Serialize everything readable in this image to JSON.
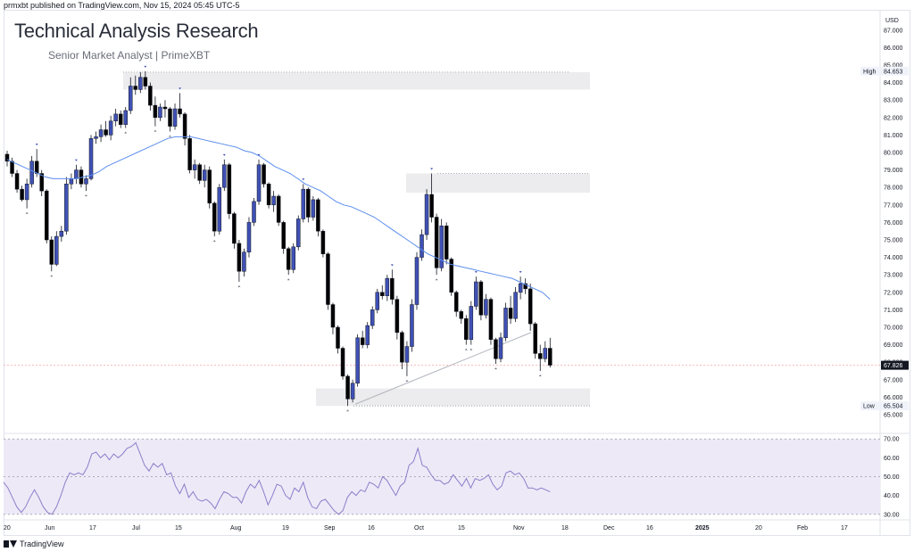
{
  "header": {
    "published_note": "prmxbt published on TradingView.com, Nov 15, 2024 05:45 UTC-5",
    "title": "Technical Analysis Research",
    "subtitle": "Senior Market Analyst | PrimeXBT",
    "currency": "USD"
  },
  "footer": {
    "brand": "TradingView"
  },
  "colors": {
    "bull": "#3f51b5",
    "bear": "#000000",
    "ma": "#5b8def",
    "rsi_line": "#8c7ec9",
    "rsi_band": "#ede9f7",
    "zone": "#ececee",
    "last_price_line": "#f7a5a8"
  },
  "price_axis": {
    "ticks": [
      "87.000",
      "86.000",
      "85.000",
      "84.000",
      "83.000",
      "82.000",
      "81.000",
      "80.000",
      "79.000",
      "78.000",
      "77.000",
      "76.000",
      "75.000",
      "74.000",
      "73.000",
      "72.000",
      "71.000",
      "70.000",
      "69.000",
      "68.000",
      "67.000",
      "66.000",
      "65.000"
    ],
    "high_label": "High",
    "high_value": "84.653",
    "low_label": "Low",
    "low_value": "65.504",
    "last_value": "67.826"
  },
  "rsi_axis": {
    "ticks": [
      "70.00",
      "60.00",
      "50.00",
      "40.00",
      "30.00"
    ]
  },
  "time_axis": [
    "20",
    "Jun",
    "17",
    "Jul",
    "15",
    "Aug",
    "19",
    "Sep",
    "16",
    "Oct",
    "15",
    "Nov",
    "18",
    "Dec",
    "16",
    "2025",
    "20",
    "Feb",
    "17"
  ],
  "chart_data": [
    {
      "type": "candlestick",
      "title": "Technical Analysis Research",
      "ylim": [
        65,
        87.5
      ],
      "series": [
        {
          "name": "price",
          "values_ohlc": [
            [
              79.9,
              80.1,
              79.2,
              79.5
            ],
            [
              79.5,
              79.7,
              78.6,
              78.8
            ],
            [
              78.8,
              79.0,
              77.7,
              77.9
            ],
            [
              77.9,
              78.1,
              77.2,
              77.3
            ],
            [
              77.3,
              78.5,
              76.8,
              78.2
            ],
            [
              78.2,
              79.8,
              78.0,
              79.5
            ],
            [
              79.5,
              80.2,
              78.6,
              78.8
            ],
            [
              78.8,
              79.0,
              77.5,
              77.8
            ],
            [
              77.8,
              77.9,
              74.8,
              75.0
            ],
            [
              75.0,
              75.2,
              73.2,
              73.6
            ],
            [
              73.6,
              75.5,
              73.5,
              75.2
            ],
            [
              75.2,
              75.8,
              74.9,
              75.5
            ],
            [
              75.5,
              78.6,
              75.3,
              78.2
            ],
            [
              78.2,
              78.8,
              77.9,
              78.5
            ],
            [
              78.5,
              79.3,
              78.2,
              79.0
            ],
            [
              79.0,
              79.2,
              78.0,
              78.2
            ],
            [
              78.2,
              78.7,
              77.8,
              78.5
            ],
            [
              78.5,
              81.0,
              78.4,
              80.8
            ],
            [
              80.8,
              81.2,
              80.5,
              80.9
            ],
            [
              80.9,
              81.6,
              80.6,
              81.3
            ],
            [
              81.3,
              81.8,
              80.9,
              81.0
            ],
            [
              81.0,
              82.1,
              80.7,
              81.8
            ],
            [
              81.8,
              82.5,
              81.5,
              82.2
            ],
            [
              82.2,
              82.4,
              81.4,
              81.6
            ],
            [
              81.6,
              82.6,
              81.4,
              82.4
            ],
            [
              82.4,
              84.3,
              82.2,
              83.8
            ],
            [
              83.8,
              84.4,
              83.3,
              83.6
            ],
            [
              83.6,
              84.6,
              83.4,
              84.3
            ],
            [
              84.3,
              84.65,
              83.6,
              83.8
            ],
            [
              83.8,
              84.0,
              82.4,
              82.7
            ],
            [
              82.7,
              83.2,
              81.5,
              82.0
            ],
            [
              82.0,
              82.8,
              81.8,
              82.6
            ],
            [
              82.6,
              83.0,
              82.0,
              82.5
            ],
            [
              82.5,
              82.6,
              81.2,
              81.5
            ],
            [
              81.5,
              82.8,
              81.3,
              82.5
            ],
            [
              82.5,
              83.4,
              82.0,
              82.2
            ],
            [
              82.2,
              82.3,
              80.4,
              80.8
            ],
            [
              80.8,
              81.0,
              78.8,
              79.0
            ],
            [
              79.0,
              79.6,
              78.5,
              79.3
            ],
            [
              79.3,
              79.4,
              78.2,
              78.4
            ],
            [
              78.4,
              79.3,
              78.0,
              79.0
            ],
            [
              79.0,
              79.2,
              76.8,
              77.1
            ],
            [
              77.1,
              77.2,
              75.2,
              75.5
            ],
            [
              75.5,
              78.2,
              75.3,
              78.0
            ],
            [
              78.0,
              79.6,
              77.8,
              79.3
            ],
            [
              79.3,
              79.4,
              76.2,
              76.5
            ],
            [
              76.5,
              76.6,
              74.5,
              74.8
            ],
            [
              74.8,
              75.0,
              72.6,
              73.2
            ],
            [
              73.2,
              74.5,
              72.9,
              74.3
            ],
            [
              74.3,
              76.3,
              74.0,
              76.0
            ],
            [
              76.0,
              77.4,
              75.8,
              77.2
            ],
            [
              77.2,
              79.6,
              77.0,
              79.3
            ],
            [
              79.3,
              79.4,
              78.0,
              78.2
            ],
            [
              78.2,
              78.3,
              76.8,
              77.0
            ],
            [
              77.0,
              77.8,
              76.6,
              77.5
            ],
            [
              77.5,
              77.6,
              75.8,
              76.0
            ],
            [
              76.0,
              76.1,
              74.2,
              74.5
            ],
            [
              74.5,
              74.6,
              73.0,
              73.3
            ],
            [
              73.3,
              74.8,
              73.1,
              74.6
            ],
            [
              74.6,
              76.4,
              74.4,
              76.2
            ],
            [
              76.2,
              78.2,
              76.0,
              77.9
            ],
            [
              77.9,
              78.0,
              76.0,
              76.3
            ],
            [
              76.3,
              77.5,
              76.1,
              77.3
            ],
            [
              77.3,
              77.4,
              75.2,
              75.5
            ],
            [
              75.5,
              75.6,
              74.0,
              74.2
            ],
            [
              74.2,
              74.3,
              71.0,
              71.3
            ],
            [
              71.3,
              71.4,
              69.6,
              70.0
            ],
            [
              70.0,
              70.1,
              68.5,
              68.8
            ],
            [
              68.8,
              68.9,
              67.0,
              67.2
            ],
            [
              67.2,
              67.3,
              65.5,
              65.9
            ],
            [
              65.9,
              67.0,
              65.7,
              66.8
            ],
            [
              66.8,
              69.6,
              66.6,
              69.4
            ],
            [
              69.4,
              69.8,
              68.8,
              69.0
            ],
            [
              69.0,
              70.3,
              68.8,
              70.1
            ],
            [
              70.1,
              71.2,
              69.9,
              71.0
            ],
            [
              71.0,
              72.2,
              70.8,
              72.0
            ],
            [
              72.0,
              72.4,
              71.6,
              71.8
            ],
            [
              71.8,
              73.0,
              71.5,
              72.8
            ],
            [
              72.8,
              73.3,
              71.3,
              71.6
            ],
            [
              71.6,
              71.8,
              69.3,
              69.7
            ],
            [
              69.7,
              69.8,
              67.6,
              68.0
            ],
            [
              68.0,
              69.2,
              67.2,
              68.9
            ],
            [
              68.9,
              71.6,
              68.6,
              71.3
            ],
            [
              71.3,
              74.3,
              71.0,
              74.0
            ],
            [
              74.0,
              75.6,
              73.8,
              75.3
            ],
            [
              75.3,
              77.9,
              75.0,
              77.6
            ],
            [
              77.6,
              78.8,
              76.0,
              76.3
            ],
            [
              76.3,
              76.5,
              73.0,
              73.4
            ],
            [
              73.4,
              76.2,
              73.2,
              75.8
            ],
            [
              75.8,
              76.0,
              73.6,
              73.9
            ],
            [
              73.9,
              74.0,
              71.8,
              72.0
            ],
            [
              72.0,
              72.1,
              70.6,
              70.9
            ],
            [
              70.9,
              71.0,
              70.2,
              70.5
            ],
            [
              70.5,
              70.7,
              69.0,
              69.3
            ],
            [
              69.3,
              71.5,
              69.0,
              71.2
            ],
            [
              71.2,
              72.9,
              71.0,
              72.6
            ],
            [
              72.6,
              72.7,
              70.4,
              70.7
            ],
            [
              70.7,
              71.9,
              70.5,
              71.6
            ],
            [
              71.6,
              71.7,
              69.0,
              69.3
            ],
            [
              69.3,
              69.4,
              67.9,
              68.2
            ],
            [
              68.2,
              69.7,
              68.0,
              69.4
            ],
            [
              69.4,
              71.4,
              69.2,
              71.1
            ],
            [
              71.1,
              71.8,
              70.2,
              70.5
            ],
            [
              70.5,
              72.3,
              70.3,
              72.0
            ],
            [
              72.0,
              72.9,
              71.6,
              72.5
            ],
            [
              72.5,
              72.8,
              71.9,
              72.2
            ],
            [
              72.2,
              72.5,
              69.8,
              70.2
            ],
            [
              70.2,
              70.3,
              68.2,
              68.5
            ],
            [
              68.5,
              69.0,
              67.5,
              68.2
            ],
            [
              68.2,
              69.2,
              68.0,
              68.8
            ],
            [
              68.8,
              69.4,
              67.7,
              67.83
            ]
          ]
        },
        {
          "name": "moving average",
          "values": [
            79.6,
            79.4,
            79.2,
            79.0,
            78.8,
            78.6,
            78.5,
            78.5,
            78.5,
            78.5,
            78.6,
            78.7,
            78.9,
            79.2,
            79.4,
            79.6,
            79.8,
            80.0,
            80.2,
            80.4,
            80.6,
            80.8,
            80.9,
            80.9,
            80.9,
            80.8,
            80.7,
            80.6,
            80.5,
            80.4,
            80.3,
            80.1,
            80.0,
            79.8,
            79.5,
            79.2,
            79.0,
            78.8,
            78.5,
            78.2,
            78.0,
            77.8,
            77.5,
            77.2,
            77.0,
            76.9,
            76.7,
            76.5,
            76.3,
            76.0,
            75.7,
            75.4,
            75.1,
            74.8,
            74.5,
            74.2,
            74.0,
            73.8,
            73.6,
            73.5,
            73.4,
            73.3,
            73.2,
            73.1,
            73.0,
            72.9,
            72.8,
            72.6,
            72.4,
            72.2,
            72.0,
            71.6
          ]
        }
      ],
      "marked_high": 84.653,
      "marked_low": 65.504,
      "last_price": 67.826
    },
    {
      "type": "line",
      "title": "",
      "ylim": [
        28,
        72
      ],
      "series": [
        {
          "name": "",
          "values": [
            47,
            44,
            39,
            34,
            31,
            34,
            39,
            43,
            39,
            34,
            31,
            30,
            34,
            40,
            47,
            52,
            51,
            52,
            51,
            55,
            62,
            63,
            60,
            62,
            59,
            62,
            60,
            62,
            65,
            66,
            68,
            62,
            56,
            53,
            57,
            55,
            57,
            51,
            52,
            45,
            41,
            46,
            39,
            42,
            38,
            37,
            38,
            36,
            33,
            38,
            42,
            41,
            39,
            39,
            36,
            42,
            46,
            44,
            48,
            42,
            35,
            40,
            46,
            45,
            40,
            38,
            44,
            42,
            47,
            39,
            34,
            33,
            37,
            38,
            35,
            32,
            30,
            32,
            39,
            42,
            40,
            43,
            42,
            47,
            46,
            44,
            50,
            48,
            44,
            40,
            45,
            47,
            56,
            58,
            65,
            56,
            55,
            51,
            48,
            48,
            46,
            47,
            51,
            48,
            45,
            49,
            44,
            49,
            48,
            49,
            51,
            46,
            43,
            45,
            52,
            53,
            51,
            52,
            49,
            44,
            44,
            43,
            44,
            43,
            42
          ]
        }
      ],
      "levels": [
        70,
        50,
        30
      ]
    }
  ]
}
